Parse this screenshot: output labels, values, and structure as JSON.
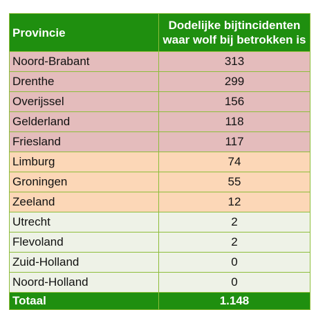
{
  "table": {
    "header": {
      "col1": "Provincie",
      "col2_line1": "Dodelijke bijtincidenten",
      "col2_line2": "waar wolf bij betrokken is"
    },
    "rows": [
      {
        "province": "Noord-Brabant",
        "value": "313",
        "tier": "red"
      },
      {
        "province": "Drenthe",
        "value": "299",
        "tier": "red"
      },
      {
        "province": "Overijssel",
        "value": "156",
        "tier": "red"
      },
      {
        "province": "Gelderland",
        "value": "118",
        "tier": "red"
      },
      {
        "province": "Friesland",
        "value": "117",
        "tier": "red"
      },
      {
        "province": "Limburg",
        "value": "74",
        "tier": "orange"
      },
      {
        "province": "Groningen",
        "value": "55",
        "tier": "orange"
      },
      {
        "province": "Zeeland",
        "value": "12",
        "tier": "orange"
      },
      {
        "province": "Utrecht",
        "value": "2",
        "tier": "light"
      },
      {
        "province": "Flevoland",
        "value": "2",
        "tier": "light"
      },
      {
        "province": "Zuid-Holland",
        "value": "0",
        "tier": "light"
      },
      {
        "province": "Noord-Holland",
        "value": "0",
        "tier": "light"
      }
    ],
    "footer": {
      "label": "Totaal",
      "value": "1.148"
    }
  },
  "colors": {
    "header_green": "#1f8f0f",
    "border_green": "#8dbd3a",
    "tier_red": "#e4bcbc",
    "tier_orange": "#fcd7b7",
    "tier_light": "#eef2e7"
  }
}
